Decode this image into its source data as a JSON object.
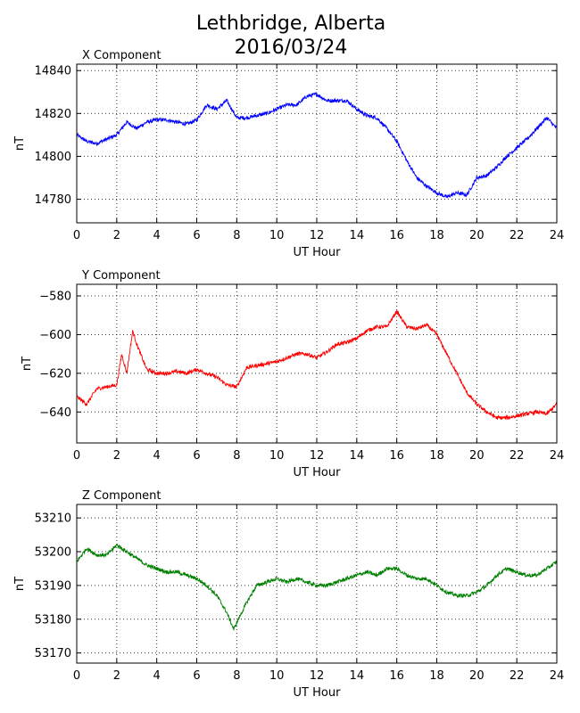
{
  "figure": {
    "title_line1": "Lethbridge, Alberta",
    "title_line2": "2016/03/24"
  },
  "chart_data": [
    {
      "type": "line",
      "title": "X Component",
      "xlabel": "UT Hour",
      "ylabel": "nT",
      "color": "#0000ff",
      "xlim": [
        0,
        24
      ],
      "ylim": [
        14769,
        14843
      ],
      "xticks": [
        0,
        2,
        4,
        6,
        8,
        10,
        12,
        14,
        16,
        18,
        20,
        22,
        24
      ],
      "yticks": [
        14780,
        14800,
        14820,
        14840
      ],
      "grid": true,
      "x": [
        0,
        0.5,
        1,
        1.5,
        2,
        2.5,
        3,
        3.5,
        4,
        4.5,
        5,
        5.5,
        6,
        6.5,
        7,
        7.5,
        8,
        8.5,
        9,
        9.5,
        10,
        10.5,
        11,
        11.5,
        12,
        12.5,
        13,
        13.5,
        14,
        14.5,
        15,
        15.5,
        16,
        16.5,
        17,
        17.5,
        18,
        18.5,
        19,
        19.5,
        20,
        20.5,
        21,
        21.5,
        22,
        22.5,
        23,
        23.5,
        24
      ],
      "y": [
        14810,
        14807,
        14806,
        14808,
        14810,
        14816,
        14813,
        14816,
        14817,
        14817,
        14816,
        14815,
        14817,
        14824,
        14822,
        14826,
        14818,
        14818,
        14819,
        14820,
        14822,
        14824,
        14824,
        14828,
        14829,
        14826,
        14826,
        14826,
        14822,
        14819,
        14818,
        14813,
        14807,
        14798,
        14790,
        14786,
        14783,
        14781,
        14783,
        14782,
        14790,
        14791,
        14795,
        14800,
        14804,
        14808,
        14813,
        14818,
        14813
      ]
    },
    {
      "type": "line",
      "title": "Y Component",
      "xlabel": "UT Hour",
      "ylabel": "nT",
      "color": "#ff0000",
      "xlim": [
        0,
        24
      ],
      "ylim": [
        -656,
        -574
      ],
      "xticks": [
        0,
        2,
        4,
        6,
        8,
        10,
        12,
        14,
        16,
        18,
        20,
        22,
        24
      ],
      "yticks": [
        -580,
        -600,
        -620,
        -640
      ],
      "grid": true,
      "x": [
        0,
        0.5,
        1,
        1.5,
        2,
        2.25,
        2.5,
        2.8,
        3,
        3.5,
        4,
        4.5,
        5,
        5.5,
        6,
        6.5,
        7,
        7.5,
        8,
        8.5,
        9,
        9.5,
        10,
        10.5,
        11,
        11.5,
        12,
        12.5,
        13,
        13.5,
        14,
        14.5,
        15,
        15.5,
        16,
        16.5,
        17,
        17.5,
        18,
        18.5,
        19,
        19.5,
        20,
        20.5,
        21,
        21.5,
        22,
        22.5,
        23,
        23.5,
        24
      ],
      "y": [
        -632,
        -636,
        -628,
        -627,
        -626,
        -610,
        -620,
        -598,
        -605,
        -618,
        -620,
        -620,
        -619,
        -620,
        -618,
        -620,
        -622,
        -626,
        -627,
        -617,
        -616,
        -615,
        -614,
        -612,
        -610,
        -610,
        -612,
        -609,
        -605,
        -604,
        -602,
        -598,
        -596,
        -596,
        -588,
        -596,
        -597,
        -595,
        -600,
        -610,
        -620,
        -630,
        -636,
        -640,
        -643,
        -643,
        -642,
        -641,
        -640,
        -641,
        -636
      ]
    },
    {
      "type": "line",
      "title": "Z Component",
      "xlabel": "UT Hour",
      "ylabel": "nT",
      "color": "#008000",
      "xlim": [
        0,
        24
      ],
      "ylim": [
        53167,
        53214
      ],
      "xticks": [
        0,
        2,
        4,
        6,
        8,
        10,
        12,
        14,
        16,
        18,
        20,
        22,
        24
      ],
      "yticks": [
        53170,
        53180,
        53190,
        53200,
        53210
      ],
      "grid": true,
      "x": [
        0,
        0.5,
        1,
        1.5,
        2,
        2.5,
        3,
        3.5,
        4,
        4.5,
        5,
        5.5,
        6,
        6.5,
        7,
        7.5,
        7.85,
        8,
        8.5,
        9,
        9.5,
        10,
        10.5,
        11,
        11.5,
        12,
        12.5,
        13,
        13.5,
        14,
        14.5,
        15,
        15.5,
        16,
        16.5,
        17,
        17.5,
        18,
        18.5,
        19,
        19.5,
        20,
        20.5,
        21,
        21.5,
        22,
        22.5,
        23,
        23.5,
        24
      ],
      "y": [
        53197,
        53201,
        53199,
        53199,
        53202,
        53200,
        53198,
        53196,
        53195,
        53194,
        53194,
        53193,
        53192,
        53190,
        53187,
        53182,
        53177,
        53179,
        53185,
        53190,
        53191,
        53192,
        53191,
        53192,
        53191,
        53190,
        53190,
        53191,
        53192,
        53193,
        53194,
        53193,
        53195,
        53195,
        53193,
        53192,
        53192,
        53190,
        53188,
        53187,
        53187,
        53188,
        53190,
        53193,
        53195,
        53194,
        53193,
        53193,
        53195,
        53197
      ]
    }
  ]
}
